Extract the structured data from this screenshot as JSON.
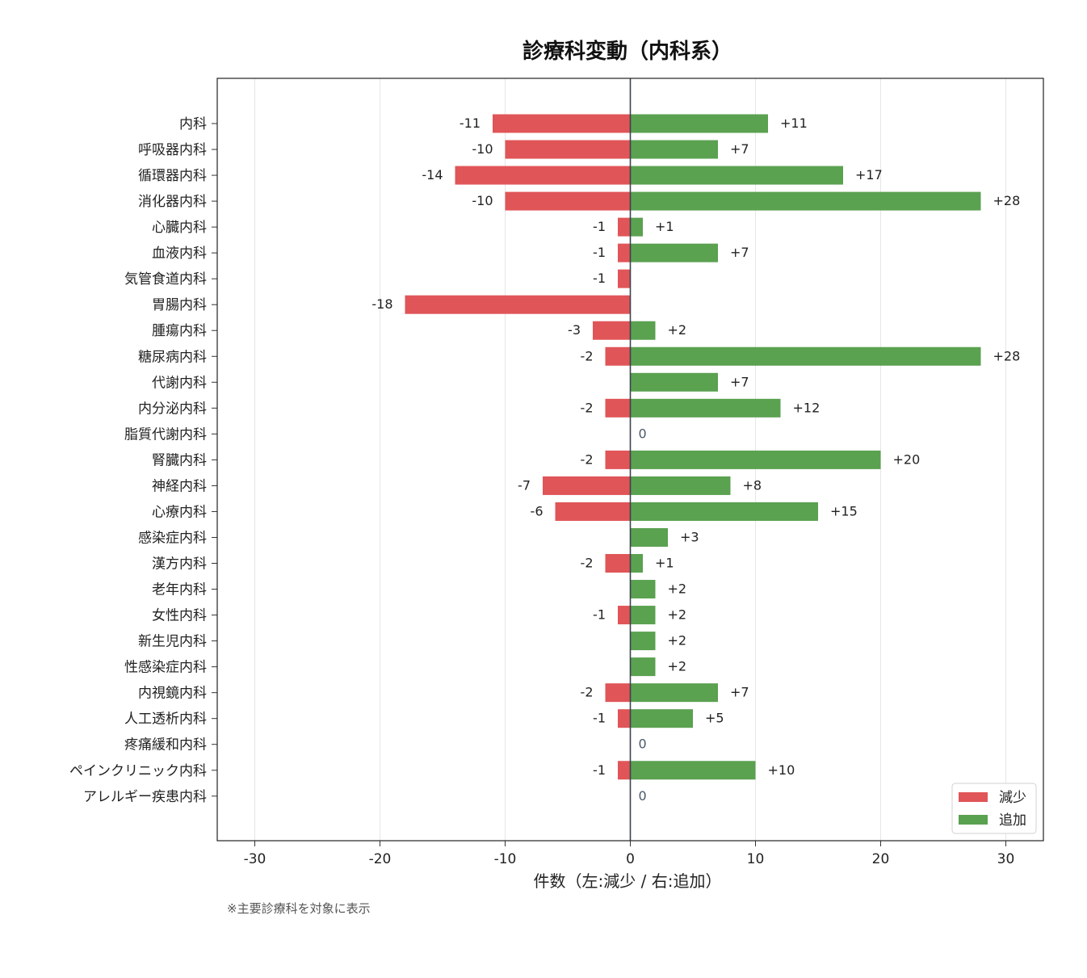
{
  "chart_data": {
    "type": "bar",
    "orientation": "horizontal-diverging",
    "title": "診療科変動（内科系）",
    "xlabel": "件数（左:減少 / 右:追加）",
    "xlim": [
      -33,
      33
    ],
    "xticks": [
      -30,
      -20,
      -10,
      0,
      10,
      20,
      30
    ],
    "xtick_labels": [
      "-30",
      "-20",
      "-10",
      "0",
      "10",
      "20",
      "30"
    ],
    "grid": "x",
    "legend_position": "lower-right",
    "categories": [
      "内科",
      "呼吸器内科",
      "循環器内科",
      "消化器内科",
      "心臓内科",
      "血液内科",
      "気管食道内科",
      "胃腸内科",
      "腫瘍内科",
      "糖尿病内科",
      "代謝内科",
      "内分泌内科",
      "脂質代謝内科",
      "腎臓内科",
      "神経内科",
      "心療内科",
      "感染症内科",
      "漢方内科",
      "老年内科",
      "女性内科",
      "新生児内科",
      "性感染症内科",
      "内視鏡内科",
      "人工透析内科",
      "疼痛緩和内科",
      "ペインクリニック内科",
      "アレルギー疾患内科"
    ],
    "series": [
      {
        "name": "減少",
        "color": "#e05558",
        "values": [
          -11,
          -10,
          -14,
          -10,
          -1,
          -1,
          -1,
          -18,
          -3,
          -2,
          0,
          -2,
          0,
          -2,
          -7,
          -6,
          0,
          -2,
          0,
          -1,
          0,
          0,
          -2,
          -1,
          0,
          -1,
          0
        ],
        "labels": [
          "-11",
          "-10",
          "-14",
          "-10",
          "-1",
          "-1",
          "-1",
          "-18",
          "-3",
          "-2",
          "",
          "-2",
          "",
          "-2",
          "-7",
          "-6",
          "",
          "-2",
          "",
          "-1",
          "",
          "",
          "-2",
          "-1",
          "",
          "-1",
          ""
        ]
      },
      {
        "name": "追加",
        "color": "#5aa150",
        "values": [
          11,
          7,
          17,
          28,
          1,
          7,
          0,
          0,
          2,
          28,
          7,
          12,
          0,
          20,
          8,
          15,
          3,
          1,
          2,
          2,
          2,
          2,
          7,
          5,
          0,
          10,
          0
        ],
        "labels": [
          "+11",
          "+7",
          "+17",
          "+28",
          "+1",
          "+7",
          "",
          "",
          "+2",
          "+28",
          "+7",
          "+12",
          "0",
          "+20",
          "+8",
          "+15",
          "+3",
          "+1",
          "+2",
          "+2",
          "+2",
          "+2",
          "+7",
          "+5",
          "0",
          "+10",
          "0"
        ]
      }
    ],
    "footnote": "※主要診療科を対象に表示"
  }
}
